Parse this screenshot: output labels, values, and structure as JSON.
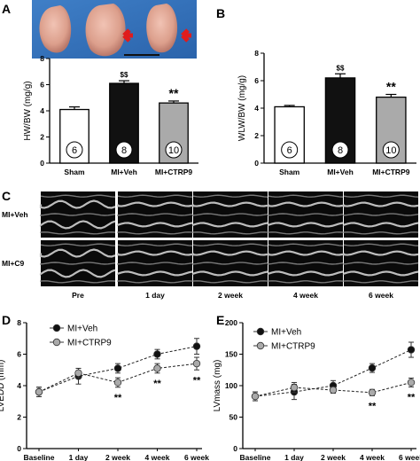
{
  "panels": {
    "A": "A",
    "B": "B",
    "C": "C",
    "D": "D",
    "E": "E"
  },
  "chart_data": [
    {
      "panel": "A",
      "type": "bar",
      "ylabel": "HW/BW (mg/g)",
      "ylim": [
        0,
        8
      ],
      "yticks": [
        "0",
        "2",
        "4",
        "6",
        "8"
      ],
      "categories": [
        "Sham",
        "MI+Veh",
        "MI+CTRP9"
      ],
      "values": [
        4.1,
        6.1,
        4.6
      ],
      "errors": [
        0.2,
        0.2,
        0.15
      ],
      "n_labels": [
        "6",
        "8",
        "10"
      ],
      "bar_colors": [
        "#ffffff",
        "#111111",
        "#aaaaaa"
      ],
      "significance": [
        "",
        "$$",
        "**"
      ]
    },
    {
      "panel": "B",
      "type": "bar",
      "ylabel": "WLW/BW (mg/g)",
      "ylim": [
        0,
        8
      ],
      "yticks": [
        "0",
        "2",
        "4",
        "6",
        "8"
      ],
      "categories": [
        "Sham",
        "MI+Veh",
        "MI+CTRP9"
      ],
      "values": [
        4.1,
        6.2,
        4.8
      ],
      "errors": [
        0.1,
        0.3,
        0.2
      ],
      "n_labels": [
        "6",
        "8",
        "10"
      ],
      "bar_colors": [
        "#ffffff",
        "#111111",
        "#aaaaaa"
      ],
      "significance": [
        "",
        "$$",
        "**"
      ]
    },
    {
      "panel": "D",
      "type": "line",
      "ylabel": "LVEDD (mm)",
      "ylim": [
        0,
        8
      ],
      "yticks": [
        "0",
        "2",
        "4",
        "6",
        "8"
      ],
      "categories": [
        "Baseline",
        "1 day",
        "2 week",
        "4 week",
        "6 week"
      ],
      "series": [
        {
          "name": "MI+Veh",
          "values": [
            3.6,
            4.6,
            5.1,
            6.0,
            6.5
          ],
          "errors": [
            0.3,
            0.5,
            0.3,
            0.3,
            0.5
          ],
          "color": "#111111"
        },
        {
          "name": "MI+CTRP9",
          "values": [
            3.6,
            4.8,
            4.2,
            5.1,
            5.4
          ],
          "errors": [
            0.3,
            0.3,
            0.3,
            0.3,
            0.4
          ],
          "color": "#aaaaaa"
        }
      ],
      "significance": [
        "",
        "",
        "**",
        "**",
        "**"
      ]
    },
    {
      "panel": "E",
      "type": "line",
      "ylabel": "LVmass (mg)",
      "ylim": [
        0,
        200
      ],
      "yticks": [
        "0",
        "50",
        "100",
        "150",
        "200"
      ],
      "categories": [
        "Baseline",
        "1 day",
        "2 week",
        "4 week",
        "6 week"
      ],
      "series": [
        {
          "name": "MI+Veh",
          "values": [
            83,
            90,
            100,
            128,
            157
          ],
          "errors": [
            7,
            12,
            8,
            7,
            12
          ],
          "color": "#111111"
        },
        {
          "name": "MI+CTRP9",
          "values": [
            83,
            97,
            93,
            89,
            105
          ],
          "errors": [
            7,
            8,
            5,
            5,
            7
          ],
          "color": "#aaaaaa"
        }
      ],
      "significance": [
        "",
        "",
        "",
        "**",
        "**"
      ]
    }
  ],
  "echo": {
    "row_labels": [
      "MI+Veh",
      "MI+C9"
    ],
    "col_labels": [
      "Pre",
      "1 day",
      "2 week",
      "4 week",
      "6 week"
    ]
  },
  "photo": {
    "description_icon": "heart-photo"
  }
}
